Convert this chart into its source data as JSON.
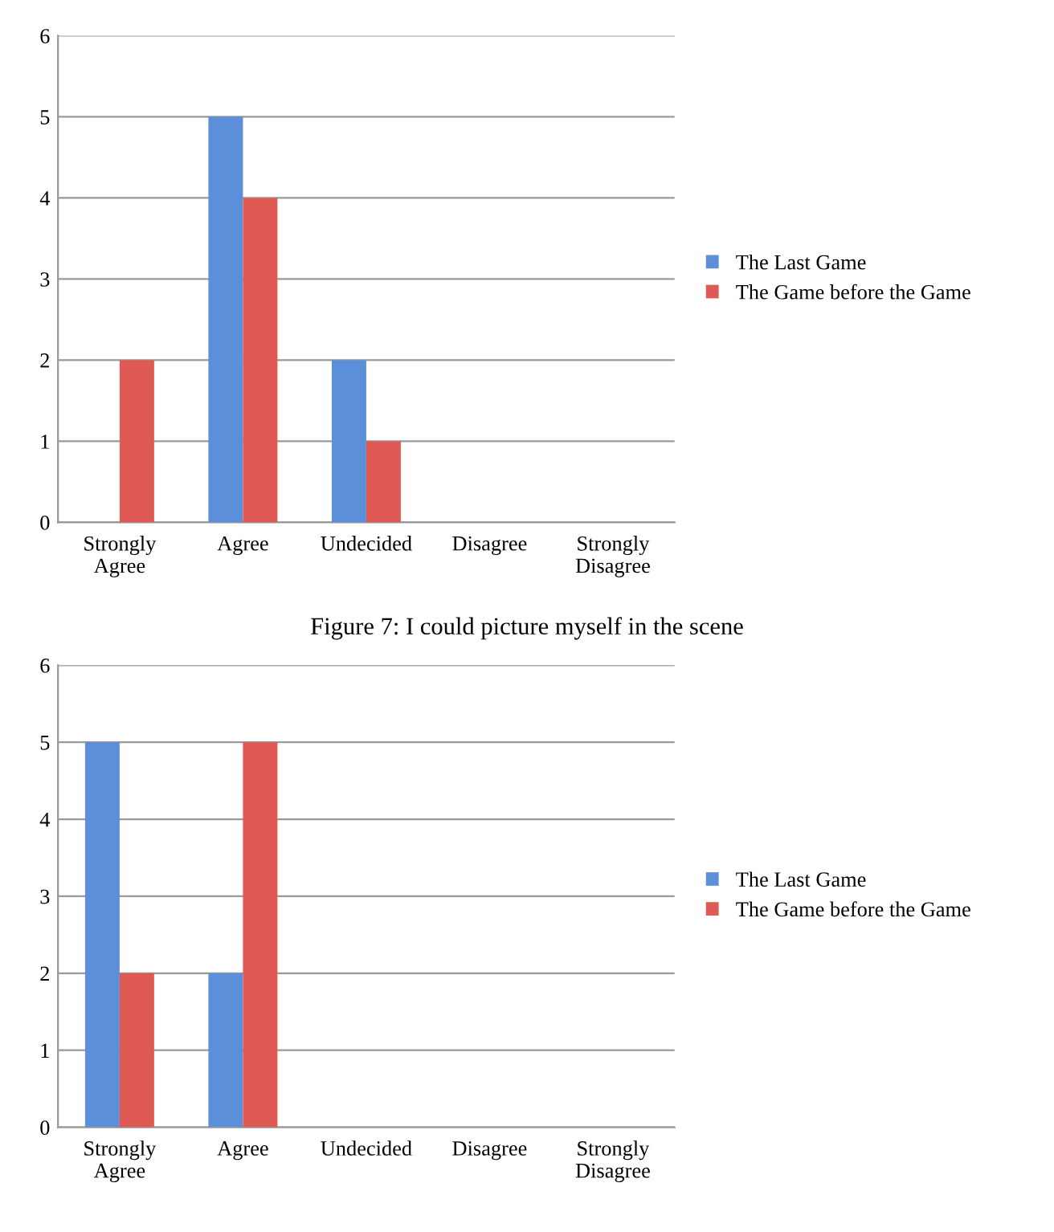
{
  "chart_data": [
    {
      "type": "bar",
      "categories": [
        "Strongly\nAgree",
        "Agree",
        "Undecided",
        "Disagree",
        "Strongly\nDisagree"
      ],
      "series": [
        {
          "name": "The Last Game",
          "color": "#5b8fd9",
          "values": [
            0,
            5,
            2,
            0,
            0
          ]
        },
        {
          "name": "The Game before the Game",
          "color": "#e05a55",
          "values": [
            2,
            4,
            1,
            0,
            0
          ]
        }
      ],
      "ylim": [
        0,
        6
      ],
      "yticks": [
        0,
        1,
        2,
        3,
        4,
        5,
        6
      ],
      "grid": "y",
      "legend": "right",
      "annotations": [
        "Figure 7: I could picture myself in the scene"
      ]
    },
    {
      "type": "bar",
      "categories": [
        "Strongly\nAgree",
        "Agree",
        "Undecided",
        "Disagree",
        "Strongly\nDisagree"
      ],
      "series": [
        {
          "name": "The Last Game",
          "color": "#5b8fd9",
          "values": [
            5,
            2,
            0,
            0,
            0
          ]
        },
        {
          "name": "The Game before the Game",
          "color": "#e05a55",
          "values": [
            2,
            5,
            0,
            0,
            0
          ]
        }
      ],
      "ylim": [
        0,
        6
      ],
      "yticks": [
        0,
        1,
        2,
        3,
        4,
        5,
        6
      ],
      "grid": "y",
      "legend": "right"
    }
  ]
}
